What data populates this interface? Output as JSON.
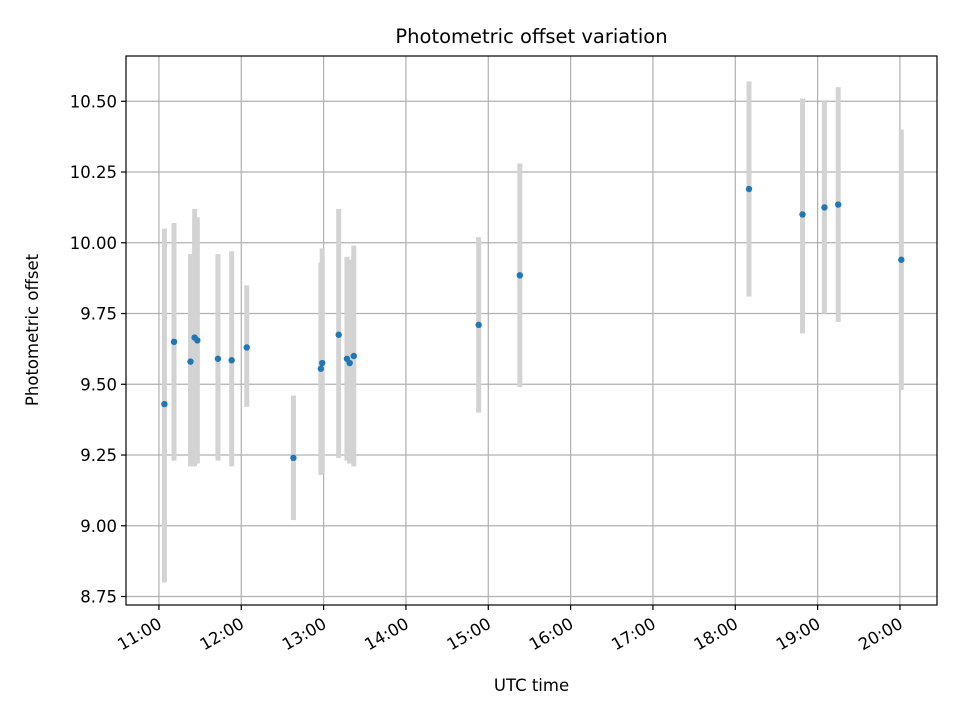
{
  "chart_data": {
    "type": "scatter",
    "title": "Photometric offset variation",
    "xlabel": "UTC time",
    "ylabel": "Photometric offset",
    "xlim": [
      "10:36",
      "20:27"
    ],
    "ylim": [
      8.72,
      10.66
    ],
    "grid": true,
    "x_ticks": [
      "11:00",
      "12:00",
      "13:00",
      "14:00",
      "15:00",
      "16:00",
      "17:00",
      "18:00",
      "19:00",
      "20:00"
    ],
    "y_ticks": [
      "8.75",
      "9.00",
      "9.25",
      "9.50",
      "9.75",
      "10.00",
      "10.25",
      "10.50"
    ],
    "colors": {
      "point": "#1f77b4",
      "errorbar": "#d3d3d3",
      "grid": "#b0b0b0"
    },
    "series": [
      {
        "points": [
          {
            "x": "11:04",
            "y": 9.43,
            "ylow": 8.8,
            "yhigh": 10.05
          },
          {
            "x": "11:11",
            "y": 9.65,
            "ylow": 9.23,
            "yhigh": 10.07
          },
          {
            "x": "11:23",
            "y": 9.58,
            "ylow": 9.21,
            "yhigh": 9.96
          },
          {
            "x": "11:26",
            "y": 9.665,
            "ylow": 9.21,
            "yhigh": 10.12
          },
          {
            "x": "11:28",
            "y": 9.655,
            "ylow": 9.22,
            "yhigh": 10.09
          },
          {
            "x": "11:43",
            "y": 9.59,
            "ylow": 9.23,
            "yhigh": 9.96
          },
          {
            "x": "11:53",
            "y": 9.585,
            "ylow": 9.21,
            "yhigh": 9.97
          },
          {
            "x": "12:04",
            "y": 9.63,
            "ylow": 9.42,
            "yhigh": 9.85
          },
          {
            "x": "12:38",
            "y": 9.24,
            "ylow": 9.02,
            "yhigh": 9.46
          },
          {
            "x": "12:58",
            "y": 9.555,
            "ylow": 9.18,
            "yhigh": 9.93
          },
          {
            "x": "12:59",
            "y": 9.575,
            "ylow": 9.18,
            "yhigh": 9.98
          },
          {
            "x": "13:11",
            "y": 9.675,
            "ylow": 9.24,
            "yhigh": 10.12
          },
          {
            "x": "13:17",
            "y": 9.59,
            "ylow": 9.23,
            "yhigh": 9.95
          },
          {
            "x": "13:19",
            "y": 9.575,
            "ylow": 9.22,
            "yhigh": 9.94
          },
          {
            "x": "13:22",
            "y": 9.6,
            "ylow": 9.21,
            "yhigh": 9.99
          },
          {
            "x": "14:53",
            "y": 9.71,
            "ylow": 9.4,
            "yhigh": 10.02
          },
          {
            "x": "15:23",
            "y": 9.885,
            "ylow": 9.49,
            "yhigh": 10.28
          },
          {
            "x": "18:10",
            "y": 10.19,
            "ylow": 9.81,
            "yhigh": 10.57
          },
          {
            "x": "18:49",
            "y": 10.1,
            "ylow": 9.68,
            "yhigh": 10.51
          },
          {
            "x": "19:05",
            "y": 10.125,
            "ylow": 9.75,
            "yhigh": 10.5
          },
          {
            "x": "19:15",
            "y": 10.135,
            "ylow": 9.72,
            "yhigh": 10.55
          },
          {
            "x": "20:01",
            "y": 9.94,
            "ylow": 9.48,
            "yhigh": 10.4
          }
        ]
      }
    ]
  }
}
